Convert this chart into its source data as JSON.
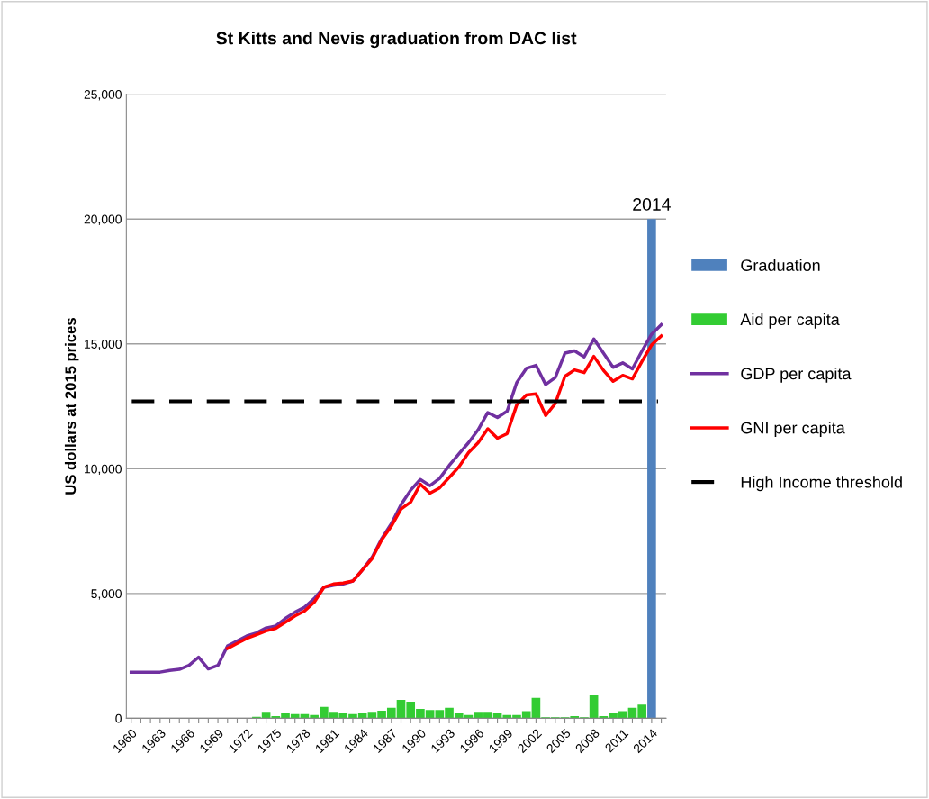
{
  "chart_data": {
    "type": "bar",
    "title": "St Kitts and Nevis graduation from DAC list",
    "ylabel": "US dollars at 2015 prices",
    "categories": [
      "1960",
      null,
      null,
      "1963",
      null,
      null,
      "1966",
      null,
      null,
      "1969",
      null,
      null,
      "1972",
      null,
      null,
      "1975",
      null,
      null,
      "1978",
      null,
      null,
      "1981",
      null,
      null,
      "1984",
      null,
      null,
      "1987",
      null,
      null,
      "1990",
      null,
      null,
      "1993",
      null,
      null,
      "1996",
      null,
      null,
      "1999",
      null,
      null,
      "2002",
      null,
      null,
      "2005",
      null,
      null,
      "2008",
      null,
      null,
      "2011",
      null,
      null,
      "2014",
      null
    ],
    "series": [
      {
        "name": "Graduation",
        "color": "#4f81bd",
        "values": [
          null,
          null,
          null,
          null,
          null,
          null,
          null,
          null,
          null,
          null,
          null,
          null,
          null,
          null,
          null,
          null,
          null,
          null,
          null,
          null,
          null,
          null,
          null,
          null,
          null,
          null,
          null,
          null,
          null,
          null,
          null,
          null,
          null,
          null,
          null,
          null,
          null,
          null,
          null,
          null,
          null,
          null,
          null,
          null,
          null,
          null,
          null,
          null,
          null,
          null,
          null,
          null,
          null,
          null,
          20000,
          null
        ]
      },
      {
        "name": "Aid per capita",
        "color": "#33cc33",
        "values": [
          null,
          null,
          null,
          null,
          null,
          null,
          null,
          null,
          null,
          null,
          null,
          null,
          null,
          60,
          260,
          90,
          200,
          170,
          170,
          130,
          460,
          260,
          220,
          170,
          220,
          260,
          300,
          420,
          740,
          660,
          380,
          330,
          330,
          420,
          220,
          130,
          260,
          260,
          220,
          130,
          130,
          290,
          820,
          40,
          40,
          40,
          90,
          40,
          950,
          90,
          220,
          290,
          420,
          550,
          null,
          null
        ]
      },
      {
        "name": "GDP per capita",
        "type": "line",
        "color": "#7030a0",
        "values": [
          1850,
          1850,
          1850,
          1850,
          1920,
          1960,
          2120,
          2450,
          1980,
          2120,
          2900,
          3100,
          3300,
          3420,
          3620,
          3700,
          4000,
          4250,
          4450,
          4800,
          5250,
          5330,
          5380,
          5500,
          5950,
          6450,
          7200,
          7800,
          8560,
          9140,
          9570,
          9320,
          9610,
          10130,
          10590,
          11040,
          11560,
          12250,
          12050,
          12300,
          13450,
          14020,
          14140,
          13370,
          13650,
          14630,
          14720,
          14480,
          15200,
          14630,
          14060,
          14240,
          14000,
          14720,
          15390,
          15770
        ]
      },
      {
        "name": "GNI per capita",
        "type": "line",
        "color": "#ff0000",
        "values": [
          null,
          null,
          null,
          null,
          null,
          null,
          null,
          null,
          null,
          null,
          2800,
          3000,
          3200,
          3350,
          3500,
          3600,
          3850,
          4100,
          4300,
          4650,
          5250,
          5380,
          5420,
          5500,
          5950,
          6400,
          7150,
          7700,
          8380,
          8660,
          9380,
          9020,
          9230,
          9650,
          10070,
          10640,
          11040,
          11600,
          11220,
          11400,
          12550,
          12950,
          13000,
          12130,
          12610,
          13700,
          13960,
          13850,
          14500,
          13940,
          13500,
          13740,
          13600,
          14300,
          14960,
          15320
        ]
      }
    ],
    "ref_lines": [
      {
        "axis": "y",
        "value": 12700,
        "label": "High Income threshold",
        "color": "#000000",
        "line_style": "dashed"
      }
    ],
    "annotations": [
      {
        "text": "2014",
        "x": "2014",
        "y": 20000
      }
    ],
    "ylim": [
      0,
      25000
    ],
    "yticks": [
      {
        "value": 0,
        "label": "0"
      },
      {
        "value": 5000,
        "label": "5,000"
      },
      {
        "value": 10000,
        "label": "10,000"
      },
      {
        "value": 15000,
        "label": "15,000"
      },
      {
        "value": 20000,
        "label": "20,000"
      },
      {
        "value": 25000,
        "label": "25,000"
      }
    ],
    "grid": "y",
    "legend": "right"
  }
}
